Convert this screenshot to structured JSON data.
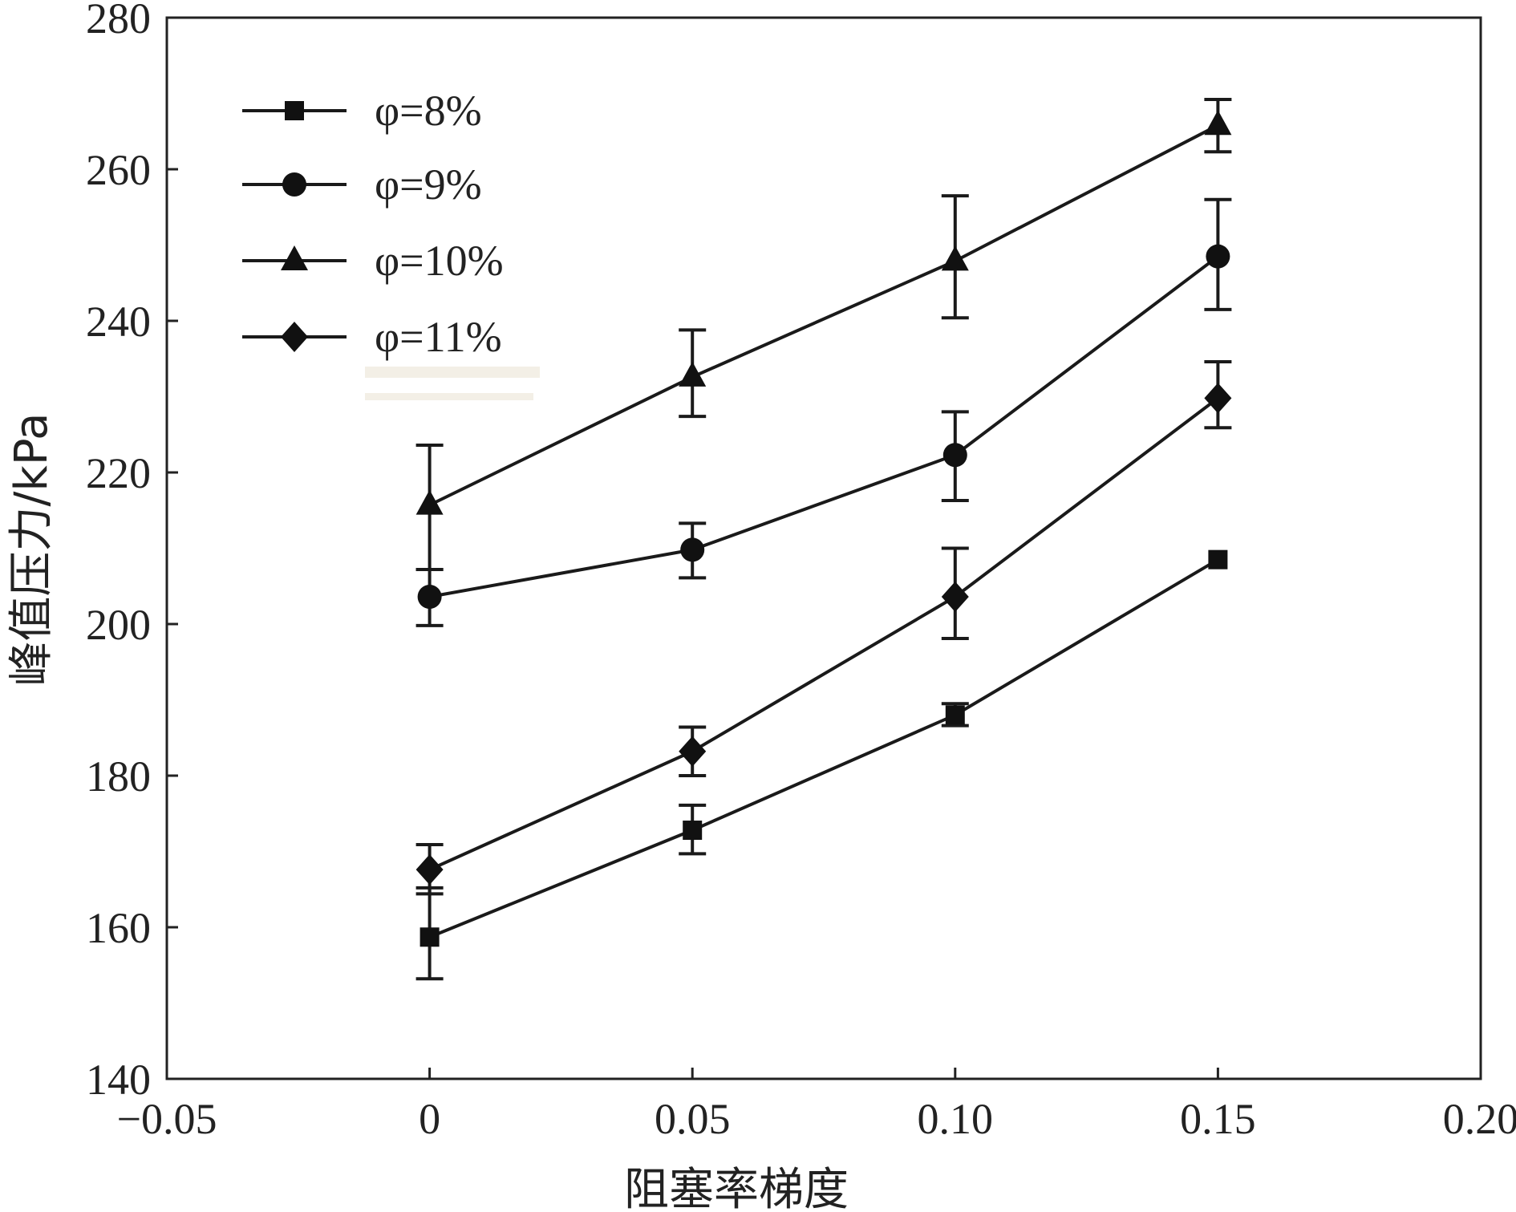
{
  "chart_data": {
    "type": "line",
    "xlabel": "阻塞率梯度",
    "ylabel": "峰值压力/kPa",
    "xlim": [
      -0.05,
      0.2
    ],
    "ylim": [
      140,
      280
    ],
    "x_ticks": [
      -0.05,
      0,
      0.05,
      0.1,
      0.15,
      0.2
    ],
    "x_tick_labels": [
      "−0.05",
      "0",
      "0.05",
      "0.10",
      "0.15",
      "0.20"
    ],
    "y_ticks": [
      140,
      160,
      180,
      200,
      220,
      240,
      260,
      280
    ],
    "y_tick_labels": [
      "140",
      "160",
      "180",
      "200",
      "220",
      "240",
      "260",
      "280"
    ],
    "legend_position": "top-left",
    "x": [
      0,
      0.05,
      0.1,
      0.15
    ],
    "series": [
      {
        "name": "φ=8%",
        "marker": "square",
        "values": [
          158.7,
          172.8,
          188.0,
          208.5
        ],
        "err_low": [
          153.2,
          169.7,
          186.6,
          208.5
        ],
        "err_high": [
          165.2,
          176.1,
          189.5,
          208.5
        ]
      },
      {
        "name": "φ=9%",
        "marker": "circle",
        "values": [
          203.6,
          209.8,
          222.3,
          248.5
        ],
        "err_low": [
          199.8,
          206.1,
          216.3,
          241.5
        ],
        "err_high": [
          207.2,
          213.3,
          228.0,
          256.0
        ]
      },
      {
        "name": "φ=10%",
        "marker": "triangle",
        "values": [
          215.7,
          232.6,
          247.9,
          265.8
        ],
        "err_low": [
          207.2,
          227.4,
          240.4,
          262.3
        ],
        "err_high": [
          223.6,
          238.8,
          256.5,
          269.2
        ]
      },
      {
        "name": "φ=11%",
        "marker": "diamond",
        "values": [
          167.6,
          183.2,
          203.6,
          229.8
        ],
        "err_low": [
          164.4,
          180.0,
          198.1,
          225.9
        ],
        "err_high": [
          170.9,
          186.4,
          210.0,
          234.6
        ]
      }
    ]
  }
}
